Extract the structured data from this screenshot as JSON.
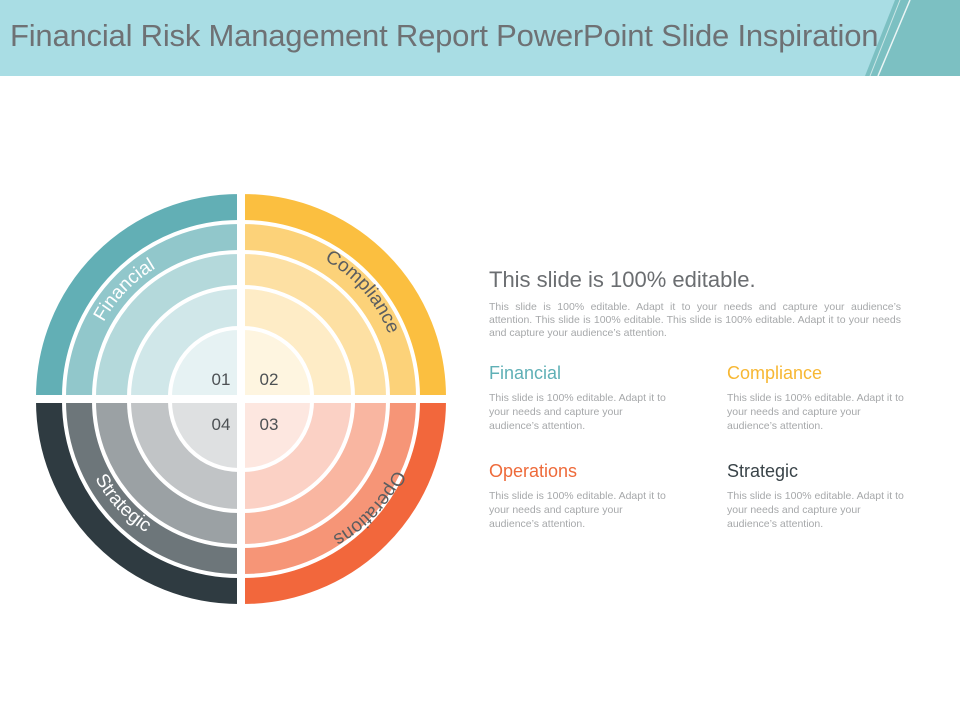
{
  "slide": {
    "title": "Financial Risk Management Report PowerPoint Slide Inspiration"
  },
  "diagram": {
    "quadrants": [
      {
        "label": "Financial",
        "number": "01",
        "color": "#62afb5"
      },
      {
        "label": "Compliance",
        "number": "02",
        "color": "#fbbf40"
      },
      {
        "label": "Operations",
        "number": "03",
        "color": "#f2673c"
      },
      {
        "label": "Strategic",
        "number": "04",
        "color": "#2f3b41"
      }
    ]
  },
  "content": {
    "heading": "This slide is 100% editable.",
    "body": "This slide is 100% editable. Adapt it to your needs and capture your audience’s attention. This slide is 100% editable. This slide is 100% editable. Adapt it to your needs and capture your audience’s attention.",
    "items": [
      {
        "title": "Financial",
        "color": "#5fb0b6",
        "text": "This slide is 100% editable. Adapt it to your needs and capture your audience’s attention."
      },
      {
        "title": "Compliance",
        "color": "#f7b733",
        "text": "This slide is 100% editable. Adapt it to your needs and capture your audience’s attention."
      },
      {
        "title": "Operations",
        "color": "#ee6a3a",
        "text": "This slide is 100% editable. Adapt it to your needs and capture your audience’s attention."
      },
      {
        "title": "Strategic",
        "color": "#3a4449",
        "text": "This slide is 100% editable. Adapt it to your needs and capture your audience’s attention."
      }
    ]
  }
}
